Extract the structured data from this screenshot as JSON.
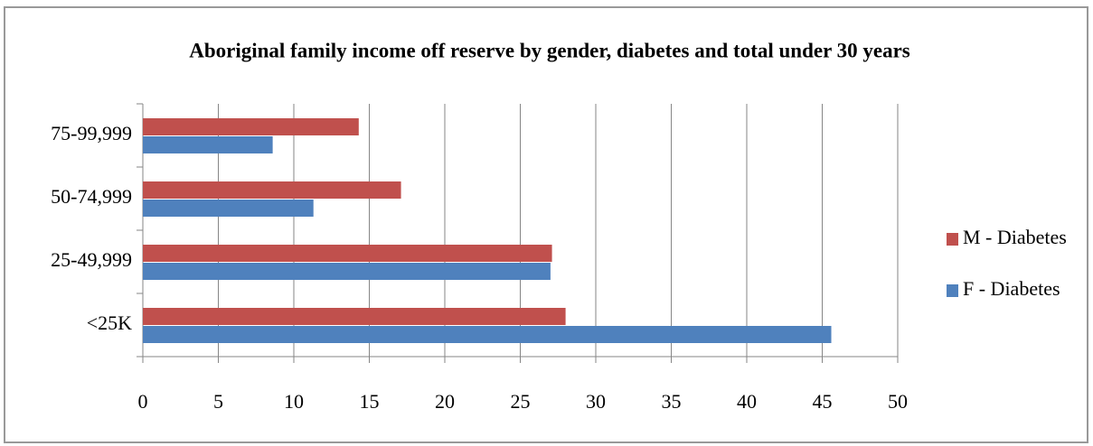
{
  "chart_data": {
    "type": "hbar",
    "title": "Aboriginal family income off reserve by gender, diabetes and total under 30 years",
    "categories": [
      "<25K",
      "25-49,999",
      "50-74,999",
      "75-99,999"
    ],
    "series": [
      {
        "name": "F - Diabetes",
        "color": "#4f81bd",
        "values": [
          45.6,
          27.0,
          11.3,
          8.6
        ]
      },
      {
        "name": "M - Diabetes",
        "color": "#c0504d",
        "values": [
          28.0,
          27.1,
          17.1,
          14.3
        ]
      }
    ],
    "xlim": [
      0,
      50
    ],
    "xticks": [
      0,
      5,
      10,
      15,
      20,
      25,
      30,
      35,
      40,
      45,
      50
    ],
    "grid": true,
    "legend": "right"
  }
}
